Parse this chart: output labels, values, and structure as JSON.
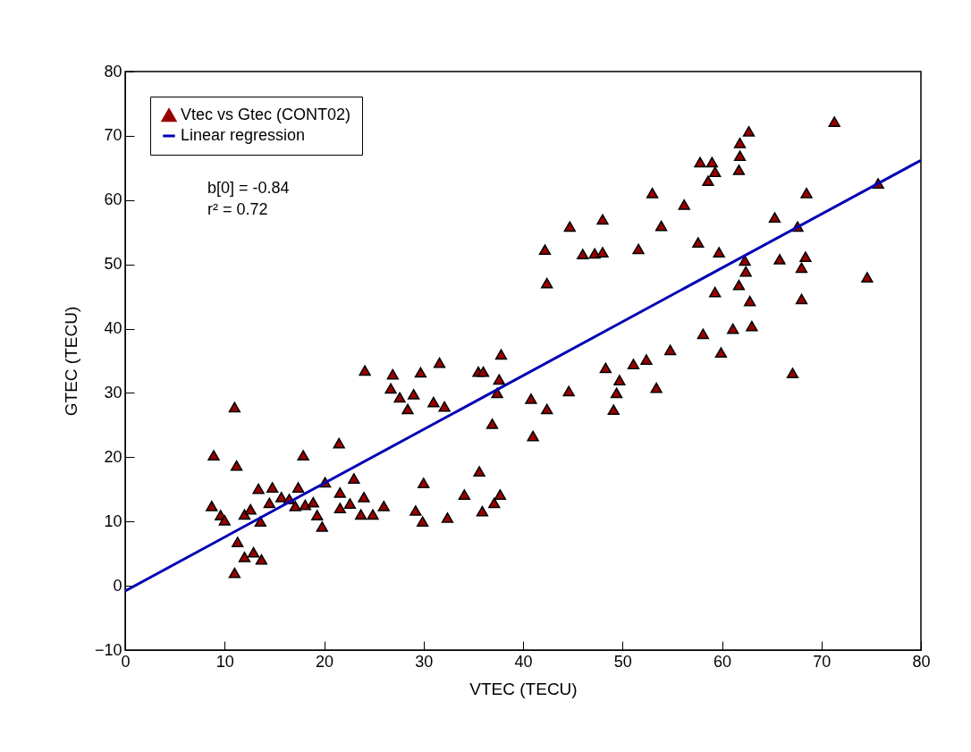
{
  "chart_data": {
    "type": "scatter",
    "xlabel": "VTEC (TECU)",
    "ylabel": "GTEC (TECU)",
    "xlim": [
      0,
      80
    ],
    "xticks": [
      0,
      10,
      20,
      30,
      40,
      50,
      60,
      70,
      80
    ],
    "ylim": [
      -10,
      80
    ],
    "yticks": [
      -10,
      0,
      10,
      20,
      30,
      40,
      50,
      60,
      70,
      80
    ],
    "grid": false,
    "legend": "top left",
    "annotations": [
      "b[0] = -0.84",
      "r² =  0.72"
    ],
    "series": [
      {
        "name": "Vtec vs Gtec (CONT02)",
        "marker": "triangle",
        "color": "#990000",
        "x": [
          71.3,
          62.7,
          61.8,
          61.8,
          57.8,
          59.0,
          59.3,
          61.7,
          58.6,
          56.2,
          68.5,
          75.7,
          65.3,
          67.6,
          57.6,
          59.7,
          62.3,
          62.4,
          65.8,
          68.4,
          68.0,
          61.7,
          59.3,
          62.8,
          68.0,
          58.1,
          61.1,
          63.0,
          59.9,
          74.6,
          67.1,
          53.0,
          48.0,
          44.7,
          53.9,
          42.2,
          46.0,
          47.2,
          48.0,
          51.6,
          42.4,
          54.8,
          52.4,
          51.1,
          48.3,
          49.7,
          49.4,
          53.4,
          44.6,
          49.1,
          42.4,
          37.8,
          31.6,
          35.5,
          36.0,
          37.6,
          37.4,
          31.0,
          32.1,
          36.9,
          40.8,
          41.0,
          35.6,
          34.1,
          37.7,
          37.1,
          35.9,
          32.4,
          24.1,
          26.9,
          29.7,
          26.7,
          27.6,
          29.0,
          28.4,
          11.0,
          21.5,
          8.9,
          17.9,
          11.2,
          20.1,
          23.0,
          13.4,
          14.8,
          17.4,
          21.6,
          24.0,
          26.0,
          14.5,
          15.7,
          16.5,
          17.1,
          18.1,
          18.9,
          19.3,
          19.8,
          21.6,
          22.6,
          23.7,
          24.9,
          8.7,
          9.6,
          10.0,
          12.0,
          12.6,
          13.6,
          11.3,
          12.0,
          12.9,
          13.7,
          11.0,
          29.2,
          29.9,
          30.0
        ],
        "values": [
          72.2,
          70.7,
          68.9,
          66.9,
          65.9,
          65.9,
          64.4,
          64.7,
          63.0,
          59.3,
          61.1,
          62.6,
          57.3,
          55.9,
          53.4,
          51.9,
          50.6,
          48.9,
          50.8,
          51.2,
          49.5,
          46.8,
          45.7,
          44.3,
          44.6,
          39.2,
          40.0,
          40.4,
          36.3,
          48.0,
          33.1,
          61.1,
          57.0,
          55.9,
          56.0,
          52.3,
          51.6,
          51.7,
          51.9,
          52.4,
          47.1,
          36.7,
          35.2,
          34.5,
          33.9,
          32.0,
          30.0,
          30.8,
          30.3,
          27.4,
          27.5,
          36.0,
          34.7,
          33.3,
          33.3,
          32.1,
          30.0,
          28.6,
          27.9,
          25.2,
          29.1,
          23.3,
          17.8,
          14.2,
          14.2,
          12.9,
          11.6,
          10.6,
          33.5,
          32.9,
          33.2,
          30.7,
          29.3,
          29.8,
          27.5,
          27.8,
          22.2,
          20.3,
          20.3,
          18.7,
          16.1,
          16.7,
          15.1,
          15.3,
          15.3,
          14.5,
          13.8,
          12.4,
          12.9,
          13.8,
          13.5,
          12.4,
          12.6,
          13.0,
          11.0,
          9.2,
          12.1,
          12.8,
          11.1,
          11.1,
          12.4,
          11.0,
          10.2,
          11.1,
          11.9,
          10.0,
          6.8,
          4.5,
          5.2,
          4.1,
          2.0,
          11.7,
          10.0,
          16.0
        ]
      },
      {
        "name": "Linear regression",
        "type": "line",
        "color": "#0000b4",
        "x": [
          0,
          80
        ],
        "values": [
          -0.8,
          66.2
        ]
      }
    ]
  }
}
